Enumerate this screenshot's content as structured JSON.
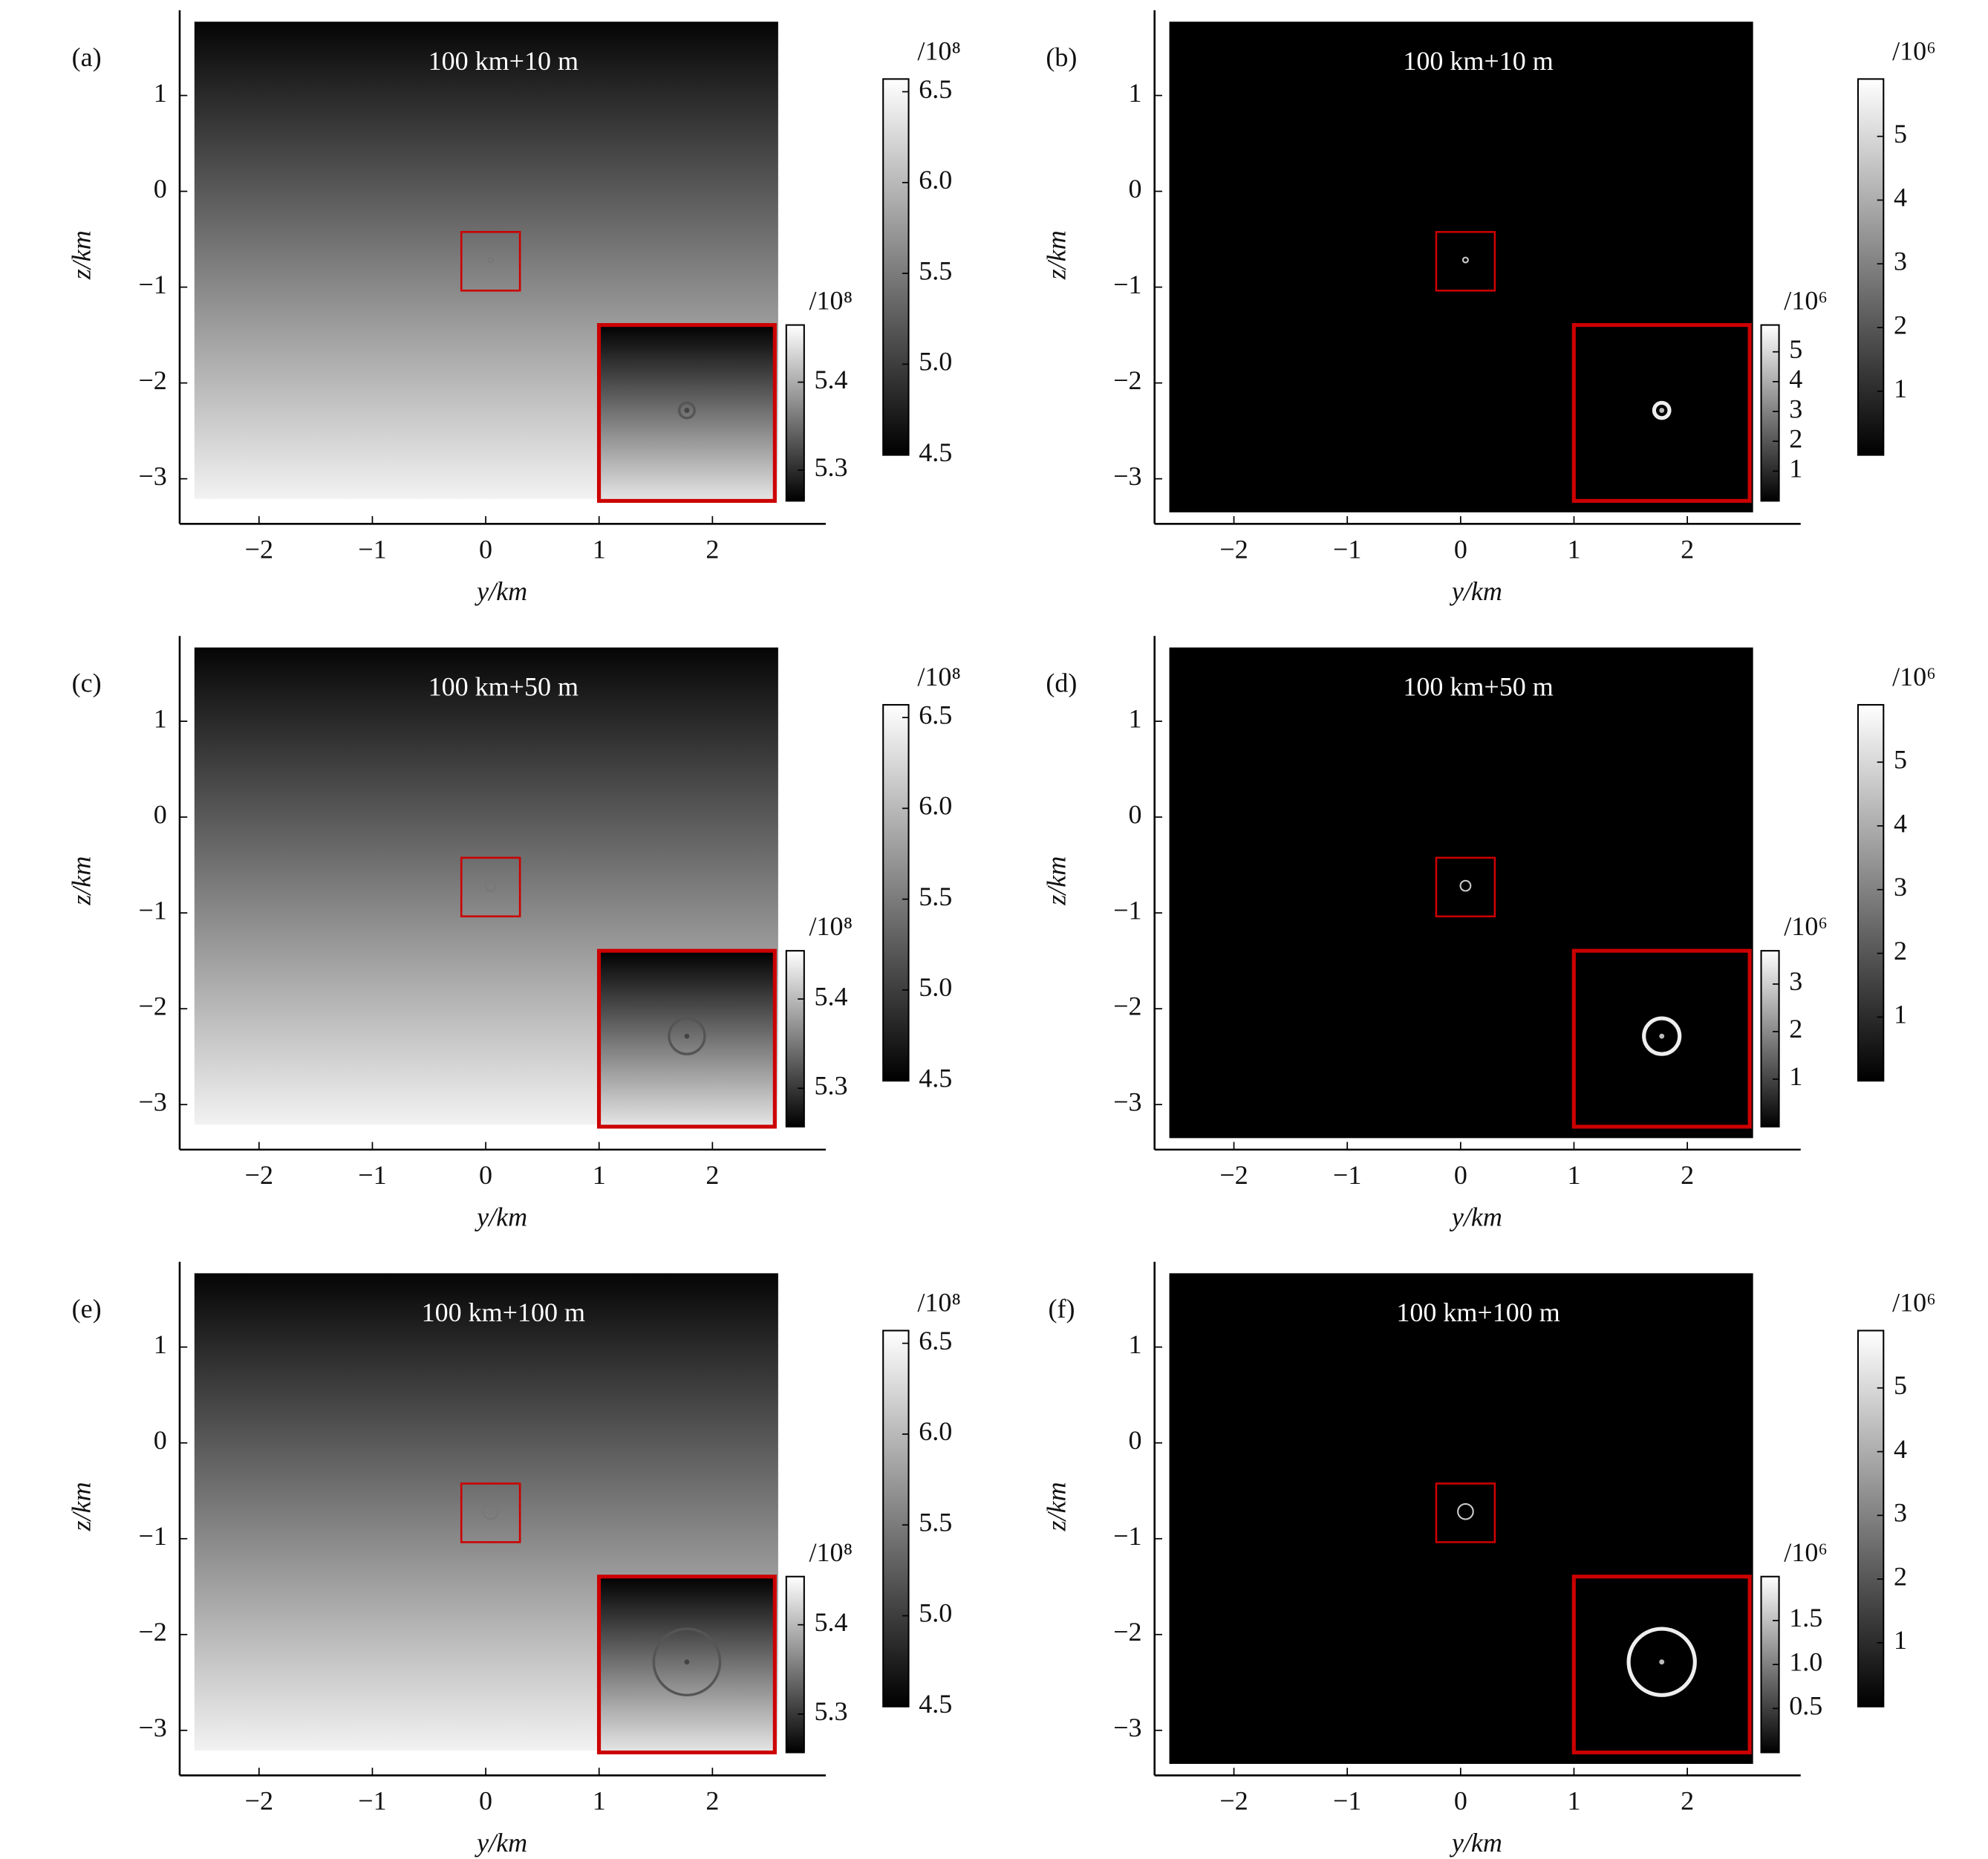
{
  "chart_data": [
    {
      "type": "heatmap",
      "colormap": "gray",
      "panel_label": "(a)",
      "title": "100 km+10 m",
      "xlabel": "y/km",
      "ylabel": "z/km",
      "xlim": [
        -2.7,
        3.0
      ],
      "ylim": [
        -3.47,
        1.89
      ],
      "extent": [
        -2.57,
        2.58,
        -3.21,
        1.77
      ],
      "xticks": [
        {
          "value": -2,
          "label": "−2"
        },
        {
          "value": -1,
          "label": "−1"
        },
        0,
        1,
        2
      ],
      "yticks": [
        1,
        0,
        {
          "value": -1,
          "label": "−1"
        },
        {
          "value": -2,
          "label": "−2"
        },
        {
          "value": -3,
          "label": "−3"
        }
      ],
      "colorbar": {
        "label": "/10⁸",
        "lim": [
          4.5,
          6.57
        ],
        "ticks": [
          6.5,
          {
            "value": 6,
            "label": "6.0"
          },
          5.5,
          {
            "value": 5,
            "label": "5.0"
          },
          4.5
        ]
      },
      "inset_colorbar": {
        "label": "/10⁸",
        "lim": [
          5.265,
          5.465
        ],
        "ticks": [
          5.4,
          5.3
        ]
      }
    },
    {
      "type": "heatmap",
      "colormap": "gray",
      "panel_label": "(b)",
      "title": "100 km+10 m",
      "xlabel": "y/km",
      "ylabel": "z/km",
      "xlim": [
        -2.7,
        3.0
      ],
      "ylim": [
        -3.47,
        1.89
      ],
      "extent": [
        -2.57,
        2.58,
        -3.35,
        1.77
      ],
      "xticks": [
        {
          "value": -2,
          "label": "−2"
        },
        {
          "value": -1,
          "label": "−1"
        },
        0,
        1,
        2
      ],
      "yticks": [
        1,
        0,
        {
          "value": -1,
          "label": "−1"
        },
        {
          "value": -2,
          "label": "−2"
        },
        {
          "value": -3,
          "label": "−3"
        }
      ],
      "colorbar": {
        "label": "/10⁶",
        "lim": [
          0,
          5.9
        ],
        "ticks": [
          5,
          4,
          3,
          2,
          1
        ]
      },
      "inset_colorbar": {
        "label": "/10⁶",
        "lim": [
          0,
          5.9
        ],
        "ticks": [
          5,
          4,
          3,
          2,
          1
        ]
      }
    },
    {
      "type": "heatmap",
      "colormap": "gray",
      "panel_label": "(c)",
      "title": "100 km+50 m",
      "xlabel": "y/km",
      "ylabel": "z/km",
      "xlim": [
        -2.7,
        3.0
      ],
      "ylim": [
        -3.47,
        1.89
      ],
      "extent": [
        -2.57,
        2.58,
        -3.21,
        1.77
      ],
      "xticks": [
        {
          "value": -2,
          "label": "−2"
        },
        {
          "value": -1,
          "label": "−1"
        },
        0,
        1,
        2
      ],
      "yticks": [
        1,
        0,
        {
          "value": -1,
          "label": "−1"
        },
        {
          "value": -2,
          "label": "−2"
        },
        {
          "value": -3,
          "label": "−3"
        }
      ],
      "colorbar": {
        "label": "/10⁸",
        "lim": [
          4.5,
          6.57
        ],
        "ticks": [
          6.5,
          {
            "value": 6,
            "label": "6.0"
          },
          5.5,
          {
            "value": 5,
            "label": "5.0"
          },
          4.5
        ]
      },
      "inset_colorbar": {
        "label": "/10⁸",
        "lim": [
          5.257,
          5.454
        ],
        "ticks": [
          5.4,
          5.3
        ]
      }
    },
    {
      "type": "heatmap",
      "colormap": "gray",
      "panel_label": "(d)",
      "title": "100 km+50 m",
      "xlabel": "y/km",
      "ylabel": "z/km",
      "xlim": [
        -2.7,
        3.0
      ],
      "ylim": [
        -3.47,
        1.89
      ],
      "extent": [
        -2.57,
        2.58,
        -3.35,
        1.77
      ],
      "xticks": [
        {
          "value": -2,
          "label": "−2"
        },
        {
          "value": -1,
          "label": "−1"
        },
        0,
        1,
        2
      ],
      "yticks": [
        1,
        0,
        {
          "value": -1,
          "label": "−1"
        },
        {
          "value": -2,
          "label": "−2"
        },
        {
          "value": -3,
          "label": "−3"
        }
      ],
      "colorbar": {
        "label": "/10⁶",
        "lim": [
          0,
          5.9
        ],
        "ticks": [
          5,
          4,
          3,
          2,
          1
        ]
      },
      "inset_colorbar": {
        "label": "/10⁶",
        "lim": [
          0,
          3.7
        ],
        "ticks": [
          3,
          2,
          1
        ]
      }
    },
    {
      "type": "heatmap",
      "colormap": "gray",
      "panel_label": "(e)",
      "title": "100 km+100 m",
      "xlabel": "y/km",
      "ylabel": "z/km",
      "xlim": [
        -2.7,
        3.0
      ],
      "ylim": [
        -3.47,
        1.89
      ],
      "extent": [
        -2.57,
        2.58,
        -3.21,
        1.77
      ],
      "xticks": [
        {
          "value": -2,
          "label": "−2"
        },
        {
          "value": -1,
          "label": "−1"
        },
        0,
        1,
        2
      ],
      "yticks": [
        1,
        0,
        {
          "value": -1,
          "label": "−1"
        },
        {
          "value": -2,
          "label": "−2"
        },
        {
          "value": -3,
          "label": "−3"
        }
      ],
      "colorbar": {
        "label": "/10⁸",
        "lim": [
          4.5,
          6.57
        ],
        "ticks": [
          6.5,
          {
            "value": 6,
            "label": "6.0"
          },
          5.5,
          {
            "value": 5,
            "label": "5.0"
          },
          4.5
        ]
      },
      "inset_colorbar": {
        "label": "/10⁸",
        "lim": [
          5.257,
          5.454
        ],
        "ticks": [
          5.4,
          5.3
        ]
      }
    },
    {
      "type": "heatmap",
      "colormap": "gray",
      "panel_label": "(f)",
      "title": "100 km+100 m",
      "xlabel": "y/km",
      "ylabel": "z/km",
      "xlim": [
        -2.7,
        3.0
      ],
      "ylim": [
        -3.47,
        1.89
      ],
      "extent": [
        -2.57,
        2.58,
        -3.35,
        1.77
      ],
      "xticks": [
        {
          "value": -2,
          "label": "−2"
        },
        {
          "value": -1,
          "label": "−1"
        },
        0,
        1,
        2
      ],
      "yticks": [
        1,
        0,
        {
          "value": -1,
          "label": "−1"
        },
        {
          "value": -2,
          "label": "−2"
        },
        {
          "value": -3,
          "label": "−3"
        }
      ],
      "colorbar": {
        "label": "/10⁶",
        "lim": [
          0,
          5.9
        ],
        "ticks": [
          5,
          4,
          3,
          2,
          1
        ]
      },
      "inset_colorbar": {
        "label": "/10⁶",
        "lim": [
          0,
          2.0
        ],
        "ticks": [
          1.5,
          {
            "value": 1,
            "label": "1.0"
          },
          0.5
        ]
      }
    }
  ]
}
